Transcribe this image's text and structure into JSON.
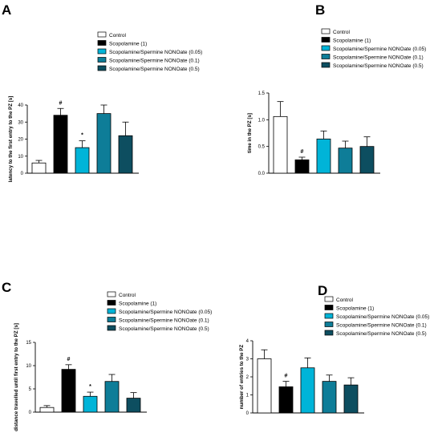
{
  "chart_data": [
    {
      "type": "bar",
      "panel": "A",
      "ylabel": "latency to the first entry to the PZ [s]",
      "ylim": [
        0,
        40
      ],
      "yticks": [
        0,
        10,
        20,
        30,
        40
      ],
      "yticklabels": [
        "0",
        "10",
        "20",
        "30",
        "40"
      ],
      "legend": [
        "Control",
        "Scopolamine (1)",
        "Scopolamine/Spermine NONOate (0.05)",
        "Scopolamine/Spermine NONOate (0.1)",
        "Scopolamine/Spermine NONOate (0.5)"
      ],
      "legend_position": "top",
      "values": [
        6,
        34,
        15,
        35,
        22
      ],
      "errors": [
        1.5,
        4,
        4,
        5,
        8
      ],
      "annotations": [
        "",
        "#",
        "*",
        "",
        ""
      ],
      "colors": [
        "#ffffff",
        "#000000",
        "#00b4d8",
        "#0e7d98",
        "#0d4e60"
      ],
      "grid": false
    },
    {
      "type": "bar",
      "panel": "B",
      "ylabel": "time in the PZ [s]",
      "ylim": [
        0,
        1.5
      ],
      "yticks": [
        0,
        0.5,
        1.0,
        1.5
      ],
      "yticklabels": [
        "0.0",
        "0.5",
        "1.0",
        "1.5"
      ],
      "legend": [
        "Control",
        "Scopolamine (1)",
        "Scopolamine/Spermine NONOate (0.05)",
        "Scopolamine/Spermine NONOate (0.1)",
        "Scopolamine/Spermine NONOate (0.5)"
      ],
      "legend_position": "top",
      "values": [
        1.06,
        0.25,
        0.64,
        0.47,
        0.5
      ],
      "errors": [
        0.28,
        0.05,
        0.15,
        0.13,
        0.18
      ],
      "annotations": [
        "",
        "#",
        "",
        "",
        ""
      ],
      "colors": [
        "#ffffff",
        "#000000",
        "#00b4d8",
        "#0e7d98",
        "#0d4e60"
      ],
      "grid": false
    },
    {
      "type": "bar",
      "panel": "C",
      "ylabel": "distance travelled until first entry to the PZ [s]",
      "ylim": [
        0,
        15
      ],
      "yticks": [
        0,
        5,
        10,
        15
      ],
      "yticklabels": [
        "0",
        "5",
        "10",
        "15"
      ],
      "legend": [
        "Control",
        "Scopolamine (1)",
        "Scopolamine/Spermine NONOate (0.05)",
        "Scopolamine/Spermine NONOate (0.1)",
        "Scopolamine/Spermine NONOate (0.5)"
      ],
      "legend_position": "top",
      "values": [
        1.0,
        9.2,
        3.4,
        6.6,
        3.0
      ],
      "errors": [
        0.4,
        1.0,
        0.9,
        1.5,
        1.2
      ],
      "annotations": [
        "",
        "#",
        "*",
        "",
        ""
      ],
      "colors": [
        "#ffffff",
        "#000000",
        "#00b4d8",
        "#0e7d98",
        "#0d4e60"
      ],
      "grid": false
    },
    {
      "type": "bar",
      "panel": "D",
      "ylabel": "number of entries to the PZ",
      "ylim": [
        0,
        4
      ],
      "yticks": [
        0,
        1,
        2,
        3,
        4
      ],
      "yticklabels": [
        "0",
        "1",
        "2",
        "3",
        "4"
      ],
      "legend": [
        "Control",
        "Scopolamine (1)",
        "Scopolamine/Spermine NONOate (0.05)",
        "Scopolamine/Spermine NONOate (0.1)",
        "Scopolamine/Spermine NONOate (0.5)"
      ],
      "legend_position": "top",
      "values": [
        3.0,
        1.45,
        2.5,
        1.75,
        1.55
      ],
      "errors": [
        0.5,
        0.3,
        0.55,
        0.35,
        0.4
      ],
      "annotations": [
        "",
        "#",
        "",
        "",
        ""
      ],
      "colors": [
        "#ffffff",
        "#000000",
        "#00b4d8",
        "#0e7d98",
        "#0d4e60"
      ],
      "grid": false
    }
  ]
}
